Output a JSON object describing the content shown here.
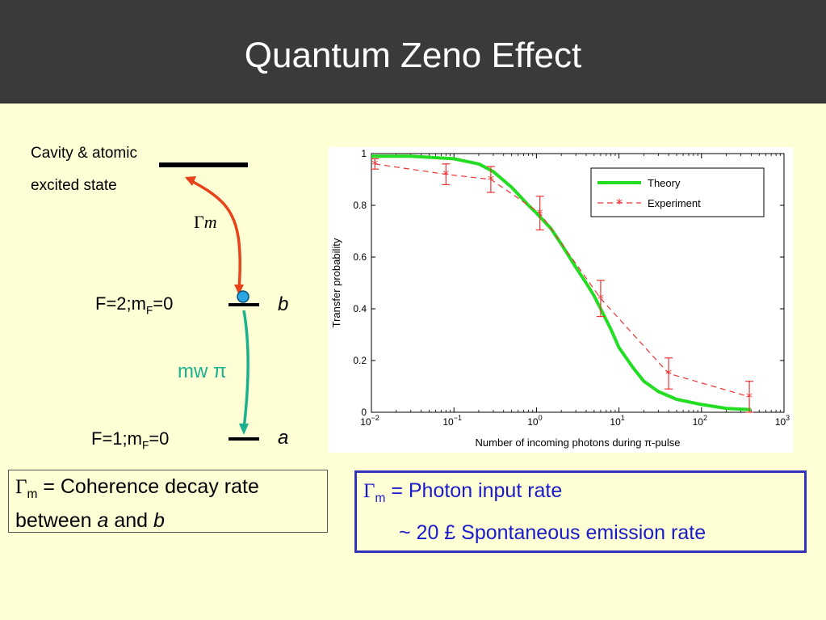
{
  "title": "Quantum Zeno Effect",
  "diagram": {
    "cavity_label_line1": "Cavity & atomic",
    "cavity_label_line2": "excited state",
    "gamma_symbol": "Γ",
    "gamma_sub": "m",
    "level_b": {
      "prefix": "F=2;m",
      "sub": "F",
      "suffix": "=0"
    },
    "level_a": {
      "prefix": "F=1;m",
      "sub": "F",
      "suffix": "=0"
    },
    "state_b": "b",
    "state_a": "a",
    "mw_label": "mw π",
    "colors": {
      "decay_arrow": "#e8431a",
      "mw_arrow": "#1ab28e",
      "atom": "#2aa7e0"
    }
  },
  "notes": {
    "left": {
      "gamma": "Γ",
      "sub": "m",
      "text1": " = Coherence decay rate",
      "text2": "between ",
      "a": "a",
      "and": " and ",
      "b": "b"
    },
    "right": {
      "gamma": "Γ",
      "sub": "m",
      "line1": " = Photon input rate",
      "line2": "~ 20 £ Spontaneous emission rate"
    }
  },
  "chart_data": {
    "type": "line",
    "xlabel": "Number of incoming photons during π-pulse",
    "ylabel": "Transfer probability",
    "xscale": "log",
    "xlim": [
      0.01,
      1000
    ],
    "ylim": [
      0,
      1
    ],
    "x_ticks": [
      {
        "base": "10",
        "exp": "−2",
        "value": 0.01
      },
      {
        "base": "10",
        "exp": "−1",
        "value": 0.1
      },
      {
        "base": "10",
        "exp": "0",
        "value": 1
      },
      {
        "base": "10",
        "exp": "1",
        "value": 10
      },
      {
        "base": "10",
        "exp": "2",
        "value": 100
      },
      {
        "base": "10",
        "exp": "3",
        "value": 1000
      }
    ],
    "y_ticks": [
      "0",
      "0.2",
      "0.4",
      "0.6",
      "0.8",
      "1"
    ],
    "legend_position": "top-right",
    "series": [
      {
        "name": "Theory",
        "color": "#22dd22",
        "style": "solid",
        "x": [
          0.01,
          0.03,
          0.1,
          0.2,
          0.3,
          0.5,
          0.8,
          1,
          1.5,
          2,
          3,
          4,
          5,
          6,
          8,
          10,
          15,
          20,
          30,
          50,
          100,
          200,
          400
        ],
        "y": [
          0.99,
          0.99,
          0.98,
          0.96,
          0.93,
          0.87,
          0.8,
          0.77,
          0.71,
          0.65,
          0.56,
          0.5,
          0.45,
          0.4,
          0.32,
          0.25,
          0.17,
          0.12,
          0.08,
          0.05,
          0.03,
          0.015,
          0.01
        ]
      },
      {
        "name": "Experiment",
        "color": "#ee3333",
        "style": "dashed",
        "marker": "asterisk",
        "x": [
          0.011,
          0.08,
          0.28,
          1.1,
          6,
          40,
          380
        ],
        "y": [
          0.96,
          0.92,
          0.9,
          0.77,
          0.44,
          0.15,
          0.06
        ],
        "error": [
          0.02,
          0.04,
          0.05,
          0.065,
          0.07,
          0.06,
          0.06
        ]
      }
    ]
  }
}
